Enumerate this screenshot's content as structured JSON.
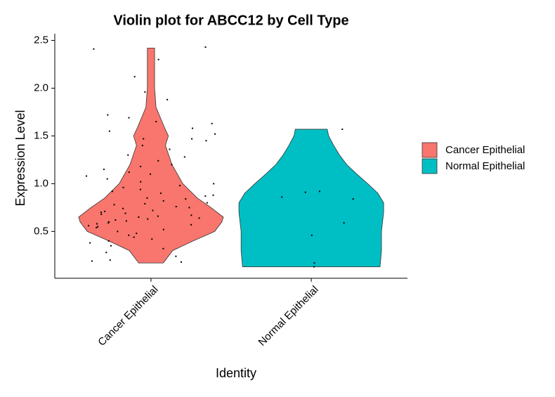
{
  "chart_data": {
    "type": "violin",
    "title": "Violin plot for ABCC12 by Cell Type",
    "x_label": "Identity",
    "y_label": "Expression Level",
    "categories": [
      "Cancer Epithelial",
      "Normal Epithelial"
    ],
    "ylim": [
      0.01,
      2.57
    ],
    "yticks": [
      0.5,
      {
        "value": 1,
        "label": "1.0"
      },
      1.5,
      {
        "value": 2,
        "label": "2.0"
      },
      2.5
    ],
    "legend_position": "right",
    "series": [
      {
        "name": "Cancer Epithelial",
        "color": "#F8766D",
        "violin_y": [
          0.17,
          0.3,
          0.4,
          0.5,
          0.6,
          0.65,
          0.75,
          0.85,
          1.0,
          1.2,
          1.4,
          1.5,
          1.6,
          1.8,
          2.0,
          2.2,
          2.42
        ],
        "violin_density": [
          0.17,
          0.3,
          0.58,
          0.88,
          0.98,
          1,
          0.83,
          0.64,
          0.44,
          0.29,
          0.2,
          0.24,
          0.18,
          0.07,
          0.05,
          0.05,
          0.05
        ],
        "points": [
          2.43,
          2.41,
          2.3,
          2.12,
          1.96,
          1.88,
          1.72,
          1.69,
          1.65,
          1.63,
          1.58,
          1.55,
          1.52,
          1.47,
          1.47,
          1.45,
          1.4,
          1.36,
          1.3,
          1.28,
          1.24,
          1.2,
          1.18,
          1.15,
          1.12,
          1.1,
          1.08,
          1.05,
          1.02,
          1.0,
          0.98,
          0.96,
          0.94,
          0.92,
          0.9,
          0.88,
          0.87,
          0.85,
          0.84,
          0.82,
          0.8,
          0.79,
          0.78,
          0.76,
          0.75,
          0.74,
          0.72,
          0.71,
          0.7,
          0.69,
          0.68,
          0.67,
          0.66,
          0.65,
          0.64,
          0.63,
          0.62,
          0.61,
          0.6,
          0.59,
          0.58,
          0.57,
          0.56,
          0.55,
          0.54,
          0.52,
          0.5,
          0.48,
          0.46,
          0.44,
          0.42,
          0.4,
          0.38,
          0.35,
          0.32,
          0.28,
          0.24,
          0.2,
          0.19,
          0.18
        ]
      },
      {
        "name": "Normal Epithelial",
        "color": "#00BFC4",
        "violin_y": [
          0.13,
          0.3,
          0.5,
          0.7,
          0.8,
          0.9,
          1.0,
          1.1,
          1.2,
          1.3,
          1.4,
          1.5,
          1.57
        ],
        "violin_density": [
          0.95,
          0.97,
          0.97,
          1,
          1,
          0.92,
          0.78,
          0.63,
          0.49,
          0.39,
          0.31,
          0.24,
          0.22
        ],
        "points": [
          1.57,
          0.92,
          0.91,
          0.86,
          0.84,
          0.59,
          0.46,
          0.17,
          0.13
        ]
      }
    ]
  }
}
